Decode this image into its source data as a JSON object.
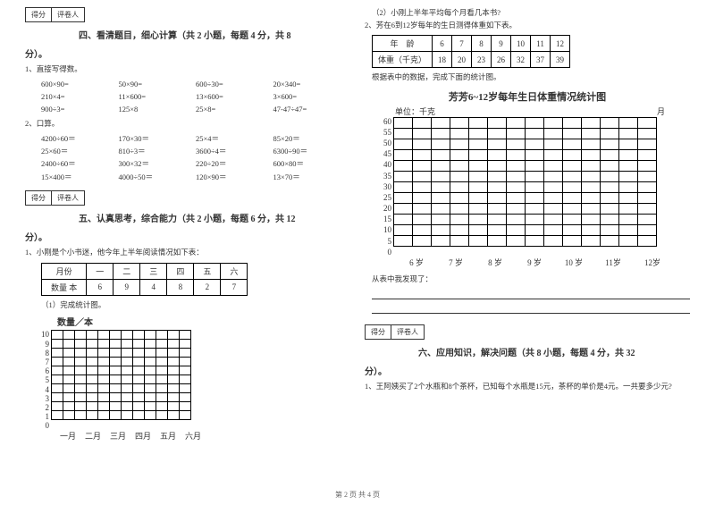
{
  "left": {
    "scoreBox": {
      "score": "得分",
      "grader": "评卷人"
    },
    "section4": {
      "title": "四、看清题目，细心计算（共 2 小题，每题 4 分，共 8",
      "titleTail": "分）。",
      "q1": {
        "label": "1、直接写得数。",
        "eqs": [
          "600×90=",
          "50×90=",
          "600÷30=",
          "20×340=",
          "210×4=",
          "11×600=",
          "13×600=",
          "3×600=",
          "900÷3=",
          "125×8",
          "25×8=",
          "47-47÷47="
        ]
      },
      "q2": {
        "label": "2、口算。",
        "eqs": [
          "4200÷60＝",
          "170×30＝",
          "25×4＝",
          "85×20＝",
          "25×60＝",
          "810÷3＝",
          "3600÷4＝",
          "6300÷90＝",
          "2400÷60＝",
          "300×32＝",
          "220÷20＝",
          "600×80＝",
          "15×400＝",
          "4000÷50＝",
          "120×90＝",
          "13×70＝"
        ]
      }
    },
    "section5": {
      "title": "五、认真思考，综合能力（共 2 小题，每题 6 分，共 12",
      "titleTail": "分）。",
      "q1": {
        "label": "1、小刚是个小书迷，他今年上半年阅读情况如下表：",
        "tableHeaders": [
          "月份",
          "一",
          "二",
          "三",
          "四",
          "五",
          "六"
        ],
        "tableRow": [
          "数量 本",
          "6",
          "9",
          "4",
          "8",
          "2",
          "7"
        ],
        "sub1": "（1）完成统计图。",
        "chartTitle": "数量／本",
        "yTicks": [
          "10",
          "9",
          "8",
          "7",
          "6",
          "5",
          "4",
          "3",
          "2",
          "1",
          "0"
        ],
        "xTicks": [
          "一月",
          "二月",
          "三月",
          "四月",
          "五月",
          "六月"
        ]
      }
    }
  },
  "right": {
    "q1sub2": "（2）小刚上半年平均每个月看几本书?",
    "q2": {
      "label": "2、芳在6到12岁每年的生日测得体重如下表。",
      "tableHeaders": [
        "年　龄",
        "6",
        "7",
        "8",
        "9",
        "10",
        "11",
        "12"
      ],
      "tableRow": [
        "体重（千克）",
        "18",
        "20",
        "23",
        "26",
        "32",
        "37",
        "39"
      ],
      "note": "根据表中的数据，完成下面的统计图。",
      "chartTitle": "芳芳6~12岁每年生日体重情况统计图",
      "unitLabel": "单位：千克",
      "monthLabel": "月",
      "yTicks": [
        "60",
        "55",
        "50",
        "45",
        "40",
        "35",
        "30",
        "25",
        "20",
        "15",
        "10",
        "5",
        "0"
      ],
      "xTicks": [
        "6 岁",
        "7 岁",
        "8 岁",
        "9 岁",
        "10 岁",
        "11岁",
        "12岁"
      ],
      "observe": "从表中我发现了："
    },
    "scoreBox": {
      "score": "得分",
      "grader": "评卷人"
    },
    "section6": {
      "title": "六、应用知识，解决问题（共 8 小题，每题 4 分，共 32",
      "titleTail": "分）。",
      "q1": "1、王阿姨买了2个水瓶和8个茶杯，已知每个水瓶是15元，茶杯的单价是4元。一共要多少元?"
    }
  },
  "footer": "第 2 页 共 4 页"
}
